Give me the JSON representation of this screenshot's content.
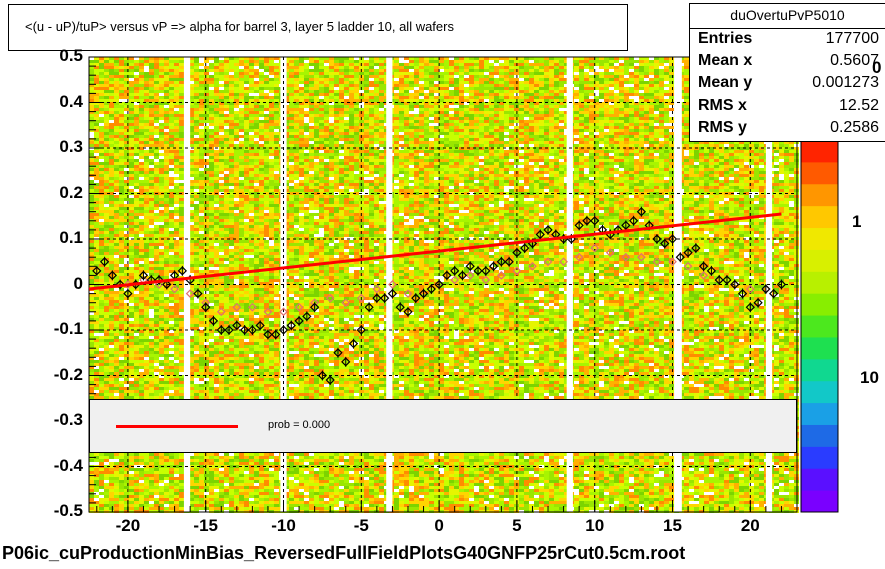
{
  "title": "<(u - uP)/tuP>  versus   vP => alpha for barrel 3, layer 5 ladder 10, all wafers",
  "stats": {
    "name": "duOvertuPvP5010",
    "rows": [
      {
        "label": "Entries",
        "value": "177700"
      },
      {
        "label": "Mean x",
        "value": "0.5607"
      },
      {
        "label": "Mean y",
        "value": "0.001273"
      },
      {
        "label": "RMS x",
        "value": "12.52"
      },
      {
        "label": "RMS y",
        "value": "0.2586"
      }
    ]
  },
  "legend": {
    "fit_label": "prob = 0.000",
    "fit_color": "#ff0000"
  },
  "footer": "P06ic_cuProductionMinBias_ReversedFullFieldPlotsG40GNFP25rCut0.5cm.root",
  "z_axis": {
    "tick_labels": [
      "1",
      "10"
    ],
    "partial_top_label": "0"
  },
  "chart_data": {
    "type": "scatter",
    "xlim": [
      -22.5,
      23
    ],
    "ylim": [
      -0.5,
      0.5
    ],
    "x_ticks": [
      -20,
      -15,
      -10,
      -5,
      0,
      5,
      10,
      15,
      20
    ],
    "y_ticks": [
      -0.5,
      -0.4,
      -0.3,
      -0.2,
      -0.1,
      0,
      0.1,
      0.2,
      0.3,
      0.4,
      0.5
    ],
    "grid": true,
    "background": "2D histogram heatmap, color scale from purple (low) to red (high)",
    "colors": {
      "fit": "#ff0000",
      "profile_a": "#000000",
      "profile_b": "#e07070"
    },
    "series": [
      {
        "marker": "black open diamond",
        "x": [
          -22.0,
          -21.5,
          -21.0,
          -20.5,
          -20.0,
          -19.5,
          -19.0,
          -18.5,
          -18.0,
          -17.5,
          -17.0,
          -16.5,
          -16.0,
          -15.5,
          -15.0,
          -14.5,
          -14.0,
          -13.5,
          -13.0,
          -12.5,
          -12.0,
          -11.5,
          -11.0,
          -10.5,
          -10.0,
          -9.5,
          -9.0,
          -8.5,
          -8.0,
          -7.5,
          -7.0,
          -6.5,
          -6.0,
          -5.5,
          -5.0,
          -4.5,
          -4.0,
          -3.5,
          -3.0,
          -2.5,
          -2.0,
          -1.5,
          -1.0,
          -0.5,
          0.0,
          0.5,
          1.0,
          1.5,
          2.0,
          2.5,
          3.0,
          3.5,
          4.0,
          4.5,
          5.0,
          5.5,
          6.0,
          6.5,
          7.0,
          7.5,
          8.0,
          8.5,
          9.0,
          9.5,
          10.0,
          10.5,
          11.0,
          11.5,
          12.0,
          12.5,
          13.0,
          13.5,
          14.0,
          14.5,
          15.0,
          15.5,
          16.0,
          16.5,
          17.0,
          17.5,
          18.0,
          18.5,
          19.0,
          19.5,
          20.0,
          20.5,
          21.0,
          21.5,
          22.0
        ],
        "y": [
          0.03,
          0.05,
          0.02,
          0.0,
          -0.02,
          0.0,
          0.02,
          0.01,
          0.01,
          0.0,
          0.02,
          0.03,
          0.01,
          -0.02,
          -0.05,
          -0.08,
          -0.1,
          -0.1,
          -0.09,
          -0.1,
          -0.1,
          -0.09,
          -0.11,
          -0.11,
          -0.1,
          -0.09,
          -0.08,
          -0.07,
          -0.05,
          -0.2,
          -0.21,
          -0.15,
          -0.17,
          -0.13,
          -0.1,
          -0.05,
          -0.03,
          -0.03,
          -0.02,
          -0.05,
          -0.06,
          -0.03,
          -0.02,
          -0.01,
          0.0,
          0.02,
          0.03,
          0.02,
          0.04,
          0.03,
          0.03,
          0.04,
          0.05,
          0.05,
          0.07,
          0.08,
          0.09,
          0.11,
          0.12,
          0.11,
          0.1,
          0.1,
          0.13,
          0.14,
          0.14,
          0.12,
          0.11,
          0.12,
          0.13,
          0.14,
          0.16,
          0.13,
          0.1,
          0.09,
          0.1,
          0.06,
          0.07,
          0.08,
          0.04,
          0.03,
          0.01,
          0.01,
          0.0,
          -0.02,
          -0.05,
          -0.04,
          -0.01,
          -0.02,
          0.0
        ]
      },
      {
        "marker": "red open diamond",
        "x": [
          -20.0,
          -19.0,
          -18.0,
          -17.0,
          -16.0,
          -15.0,
          -14.0,
          -13.0,
          -12.0,
          -11.0,
          -10.0,
          -9.0,
          -8.0,
          -7.0,
          -6.0,
          -5.0,
          -4.0,
          -3.0,
          -2.0,
          -1.0,
          0.0,
          1.0,
          2.0,
          3.0,
          4.0,
          5.0,
          6.0,
          7.0,
          8.0,
          9.0,
          10.0,
          11.0,
          12.0,
          13.0,
          14.0,
          15.0,
          16.0,
          17.0,
          18.0,
          19.0,
          20.0,
          21.0
        ],
        "y": [
          0.0,
          0.01,
          0.0,
          -0.01,
          -0.02,
          -0.04,
          -0.06,
          -0.05,
          -0.05,
          -0.06,
          -0.06,
          -0.05,
          -0.04,
          -0.03,
          -0.04,
          -0.03,
          -0.01,
          0.0,
          -0.02,
          -0.02,
          0.0,
          0.01,
          0.02,
          0.01,
          0.02,
          0.03,
          0.04,
          0.05,
          0.05,
          0.06,
          0.08,
          0.07,
          0.06,
          0.06,
          0.05,
          0.05,
          0.04,
          0.02,
          0.01,
          0.0,
          -0.01,
          -0.01
        ]
      }
    ],
    "fit_line": {
      "x": [
        -22.5,
        22.0
      ],
      "y": [
        -0.01,
        0.155
      ]
    }
  }
}
